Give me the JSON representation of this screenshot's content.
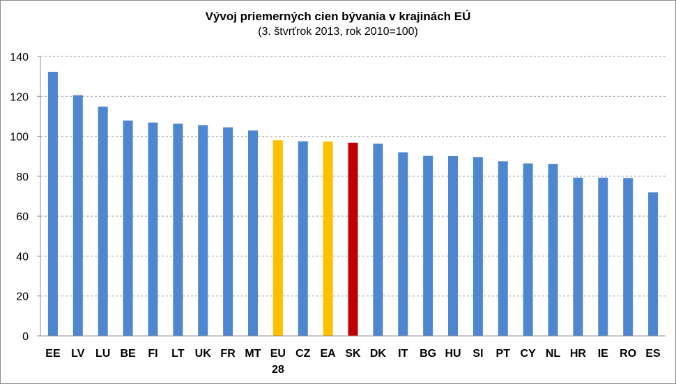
{
  "chart_data": {
    "type": "bar",
    "title": "Vývoj priemerných cien bývania v krajinách EÚ",
    "subtitle": "(3. štvrťrok 2013, rok 2010=100)",
    "categories": [
      "EE",
      "LV",
      "LU",
      "BE",
      "FI",
      "LT",
      "UK",
      "FR",
      "MT",
      "EU 28",
      "CZ",
      "EA",
      "SK",
      "DK",
      "IT",
      "BG",
      "HU",
      "SI",
      "PT",
      "CY",
      "NL",
      "HR",
      "IE",
      "RO",
      "ES"
    ],
    "values": [
      132.3,
      120.6,
      114.9,
      107.9,
      106.9,
      106.3,
      105.6,
      104.5,
      102.9,
      98.0,
      97.5,
      97.4,
      96.8,
      96.3,
      92.0,
      90.2,
      90.1,
      89.6,
      87.5,
      86.4,
      86.2,
      79.3,
      79.3,
      79.1,
      71.9
    ],
    "colors": [
      "#4F86D0",
      "#4F86D0",
      "#4F86D0",
      "#4F86D0",
      "#4F86D0",
      "#4F86D0",
      "#4F86D0",
      "#4F86D0",
      "#4F86D0",
      "#FFC000",
      "#4F86D0",
      "#FFC000",
      "#C00000",
      "#4F86D0",
      "#4F86D0",
      "#4F86D0",
      "#4F86D0",
      "#4F86D0",
      "#4F86D0",
      "#4F86D0",
      "#4F86D0",
      "#4F86D0",
      "#4F86D0",
      "#4F86D0",
      "#4F86D0"
    ],
    "ylim": [
      0,
      140
    ],
    "yticks": [
      0,
      20,
      40,
      60,
      80,
      100,
      120,
      140
    ],
    "grid": true,
    "xlabel": "",
    "ylabel": ""
  }
}
